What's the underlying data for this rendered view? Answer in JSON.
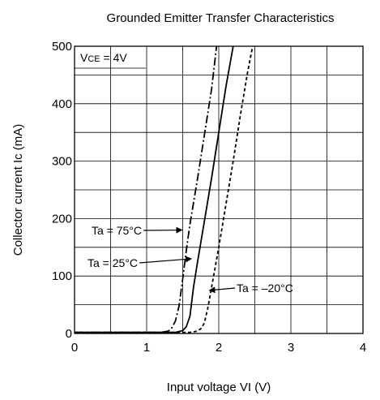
{
  "chart_data": {
    "type": "line",
    "title": "Grounded Emitter Transfer Characteristics",
    "xlabel": "Input voltage  VI (V)",
    "ylabel": "Collector current  Ic (mA)",
    "xlim": [
      0,
      4
    ],
    "ylim": [
      0,
      500
    ],
    "xticks": [
      "0",
      "1",
      "2",
      "3",
      "4"
    ],
    "yticks": [
      "0",
      "100",
      "200",
      "300",
      "400",
      "500"
    ],
    "grid": true,
    "condition": "VCE = 4V",
    "series": [
      {
        "name": "Ta = 75°C",
        "style": "dash-dot",
        "x": [
          0,
          1.2,
          1.3,
          1.35,
          1.4,
          1.45,
          1.5,
          1.55,
          1.6,
          1.7,
          1.8,
          1.9,
          1.97
        ],
        "y": [
          2,
          2,
          4,
          10,
          22,
          48,
          95,
          145,
          190,
          265,
          345,
          425,
          500
        ]
      },
      {
        "name": "Ta = 25°C",
        "style": "solid",
        "x": [
          0,
          1.4,
          1.5,
          1.55,
          1.6,
          1.65,
          1.7,
          1.8,
          1.9,
          2.0,
          2.1,
          2.2
        ],
        "y": [
          2,
          2,
          5,
          12,
          30,
          80,
          120,
          195,
          270,
          350,
          430,
          500
        ]
      },
      {
        "name": "Ta = –20°C",
        "style": "dotted",
        "x": [
          0,
          1.6,
          1.7,
          1.75,
          1.8,
          1.85,
          1.9,
          2.0,
          2.1,
          2.2,
          2.3,
          2.4,
          2.47
        ],
        "y": [
          2,
          2,
          4,
          8,
          18,
          45,
          80,
          150,
          225,
          300,
          380,
          455,
          500
        ]
      }
    ],
    "annotations": [
      {
        "text": "Ta = 75°C",
        "points_to": [
          1.5,
          180
        ]
      },
      {
        "text": "Ta = 25°C",
        "points_to": [
          1.63,
          130
        ]
      },
      {
        "text": "Ta = –20°C",
        "points_to": [
          1.86,
          75
        ]
      }
    ]
  }
}
